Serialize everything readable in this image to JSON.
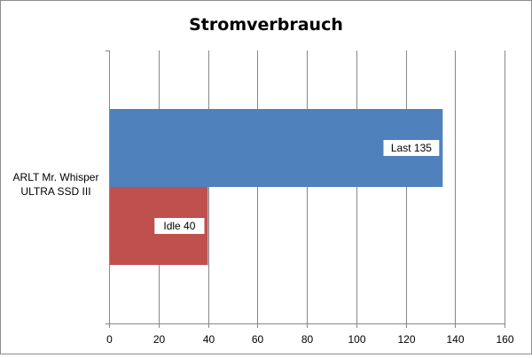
{
  "chart_data": {
    "type": "bar",
    "orientation": "horizontal",
    "title": "Stromverbrauch",
    "categories": [
      "ARLT Mr. Whisper ULTRA SSD III"
    ],
    "category_label_lines": [
      "ARLT Mr. Whisper",
      "ULTRA SSD III"
    ],
    "series": [
      {
        "name": "Last",
        "values": [
          135
        ],
        "color": "#4f81bd",
        "label": "Last 135"
      },
      {
        "name": "Idle",
        "values": [
          40
        ],
        "color": "#c0504d",
        "label": "Idle 40"
      }
    ],
    "xlim": [
      0,
      160
    ],
    "xticks": [
      0,
      20,
      40,
      60,
      80,
      100,
      120,
      140,
      160
    ],
    "xlabel": "",
    "ylabel": "",
    "grid": true,
    "legend": "none"
  }
}
